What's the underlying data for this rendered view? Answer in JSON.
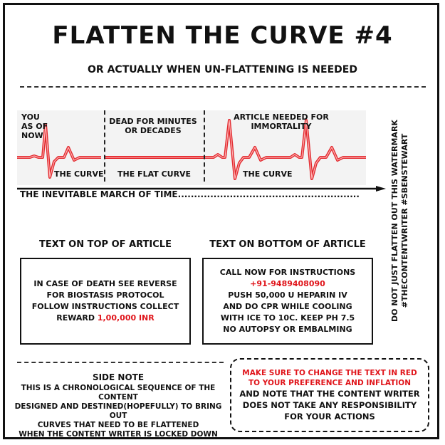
{
  "title": "FLATTEN THE CURVE #4",
  "subtitle": "OR ACTUALLY WHEN UN-FLATTENING IS NEEDED",
  "timeline": {
    "segments": [
      {
        "top_label": "YOU AS OF NOW",
        "caption": "THE CURVE"
      },
      {
        "top_label": "DEAD FOR MINUTES OR DECADES",
        "caption": "THE FLAT CURVE"
      },
      {
        "top_label": "ARTICLE NEEDED FOR IMMORTALITY",
        "caption": "THE CURVE"
      }
    ],
    "arrow_label": "THE INEVITABLE MARCH OF TIME........................................................"
  },
  "article_top": {
    "heading": "TEXT ON TOP OF ARTICLE",
    "lines": [
      "IN CASE OF DEATH SEE REVERSE",
      "FOR BIOSTASIS PROTOCOL",
      "FOLLOW INSTRUCTIONS COLLECT"
    ],
    "reward_prefix": "REWARD ",
    "reward_value": "1,00,000 INR"
  },
  "article_bottom": {
    "heading": "TEXT ON BOTTOM OF ARTICLE",
    "line1": "CALL NOW FOR INSTRUCTIONS",
    "phone": "+91-9489408090",
    "lines": [
      "PUSH 50,000 U HEPARIN IV",
      "AND DO CPR WHILE COOLING",
      "WITH ICE TO 10C. KEEP PH 7.5",
      "NO AUTOPSY OR EMBALMING"
    ]
  },
  "side_note": {
    "heading": "SIDE NOTE",
    "lines": [
      "THIS IS A CHRONOLOGICAL SEQUENCE OF THE CONTENT",
      "DESIGNED AND DESTINED(HOPEFULLY) TO BRING OUT",
      "CURVES THAT NEED TO BE FLATTENED",
      "WHEN THE CONTENT WRITER IS LOCKED DOWN"
    ]
  },
  "disclaimer": {
    "red_lines": [
      "MAKE SURE TO CHANGE THE TEXT IN RED",
      "TO YOUR PREFERENCE AND INFLATION"
    ],
    "lines": [
      "AND NOTE THAT THE CONTENT WRITER",
      "DOES NOT TAKE ANY RESPONSIBILITY",
      "FOR YOUR ACTIONS"
    ]
  },
  "watermark": {
    "line1": "DO NOT JUST FLATTEN OUT THIS WATERMARK",
    "line2": "#THECONTENTWRITER #SBENSTEWART"
  },
  "colors": {
    "accent_red": "#e0151b",
    "ink": "#111111"
  }
}
